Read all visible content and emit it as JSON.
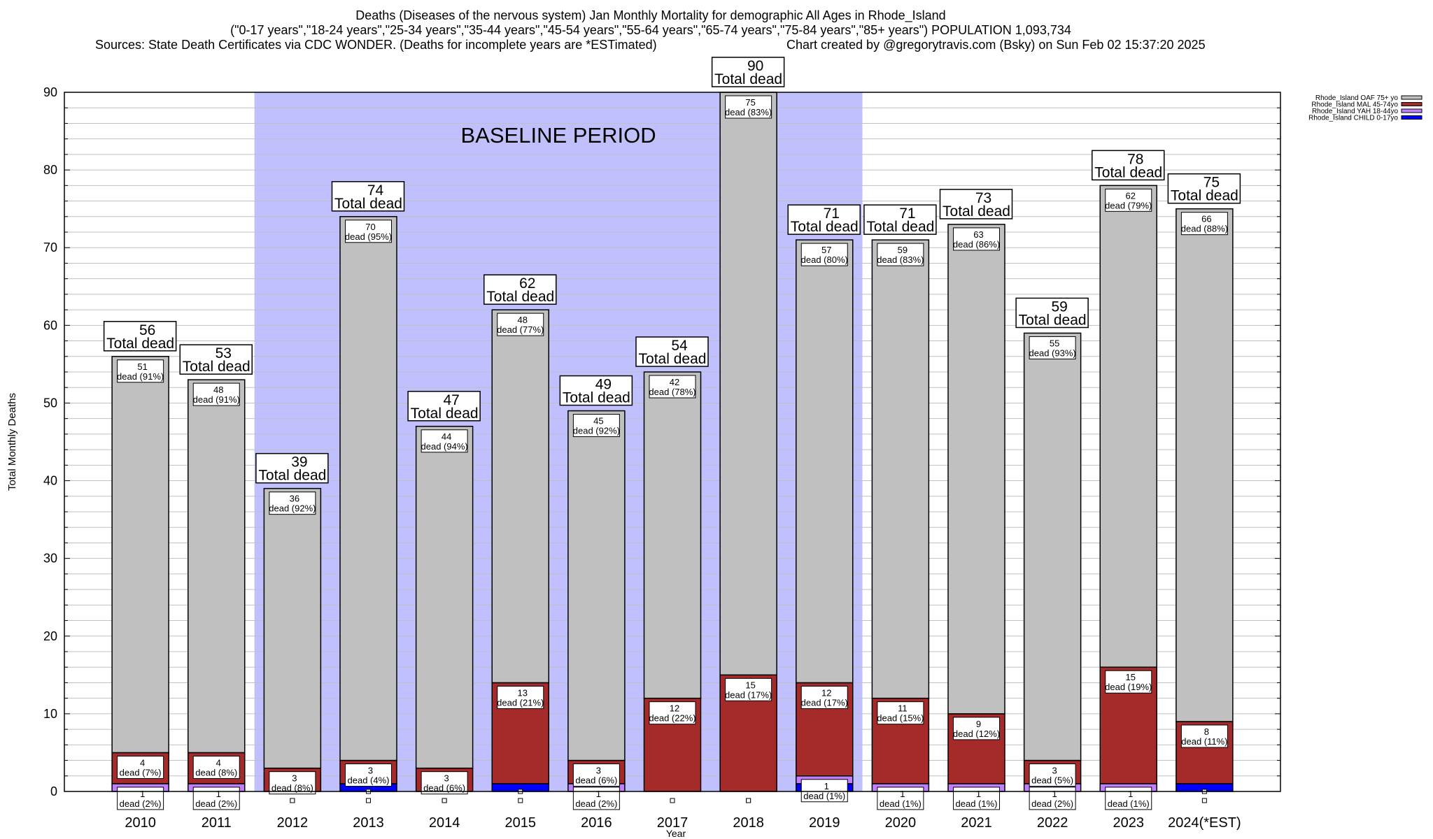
{
  "chart_data": {
    "type": "bar",
    "stacked": true,
    "title": "Deaths (Diseases of the nervous system) Jan Monthly Mortality for demographic All Ages in Rhode_Island",
    "subtitle": "(\"0-17 years\",\"18-24 years\",\"25-34 years\",\"35-44 years\",\"45-54 years\",\"55-64 years\",\"65-74 years\",\"75-84 years\",\"85+ years\") POPULATION 1,093,734",
    "sources": "Sources: State Death Certificates via CDC WONDER. (Deaths for incomplete years are *ESTimated)",
    "credit": "Chart created by @gregorytravis.com (Bsky) on Sun Feb 02 15:37:20 2025",
    "xlabel": "Year",
    "ylabel": "Total Monthly Deaths",
    "ylim": [
      0,
      90
    ],
    "yticks": [
      "0",
      "10",
      "20",
      "30",
      "40",
      "50",
      "60",
      "70",
      "80",
      "90"
    ],
    "grid": true,
    "legend_position": "top-right",
    "annotation": "BASELINE PERIOD",
    "baseline_range": [
      "2012",
      "2019"
    ],
    "total_label_suffix": "Total dead",
    "segment_label_word": "dead",
    "categories": [
      "2010",
      "2011",
      "2012",
      "2013",
      "2014",
      "2015",
      "2016",
      "2017",
      "2018",
      "2019",
      "2020",
      "2021",
      "2022",
      "2023",
      "2024(*EST)"
    ],
    "totals": [
      56,
      53,
      39,
      74,
      47,
      62,
      49,
      54,
      90,
      71,
      71,
      73,
      59,
      78,
      75
    ],
    "series": [
      {
        "name": "Rhode_Island CHILD 0-17yo",
        "color": "#0000ff",
        "values": [
          0,
          0,
          0,
          1,
          0,
          1,
          0,
          0,
          0,
          1,
          0,
          0,
          0,
          0,
          1
        ],
        "percents": [
          null,
          null,
          null,
          null,
          null,
          null,
          null,
          null,
          null,
          null,
          null,
          null,
          null,
          null,
          null
        ]
      },
      {
        "name": "Rhode_Island YAH 18-44yo",
        "color": "#c080ff",
        "values": [
          1,
          1,
          0,
          0,
          0,
          0,
          1,
          0,
          0,
          1,
          1,
          1,
          1,
          1,
          0
        ],
        "percents": [
          "2%",
          "2%",
          null,
          null,
          null,
          null,
          "2%",
          null,
          null,
          "1%",
          "1%",
          "1%",
          "2%",
          "1%",
          null
        ]
      },
      {
        "name": "Rhode_Island MAL 45-74yo",
        "color": "#a52a2a",
        "values": [
          4,
          4,
          3,
          3,
          3,
          13,
          3,
          12,
          15,
          12,
          11,
          9,
          3,
          15,
          8
        ],
        "percents": [
          "7%",
          "8%",
          "8%",
          "4%",
          "6%",
          "21%",
          "6%",
          "22%",
          "17%",
          "17%",
          "15%",
          "12%",
          "5%",
          "19%",
          "11%"
        ]
      },
      {
        "name": "Rhode_Island OAF 75+ yo",
        "color": "#c0c0c0",
        "values": [
          51,
          48,
          36,
          70,
          44,
          48,
          45,
          42,
          75,
          57,
          59,
          63,
          55,
          62,
          66
        ],
        "percents": [
          "91%",
          "91%",
          "92%",
          "95%",
          "94%",
          "77%",
          "92%",
          "78%",
          "83%",
          "80%",
          "83%",
          "86%",
          "93%",
          "79%",
          "88%"
        ]
      }
    ],
    "legend_order": [
      "Rhode_Island OAF 75+ yo",
      "Rhode_Island MAL 45-74yo",
      "Rhode_Island YAH 18-44yo",
      "Rhode_Island CHILD 0-17yo"
    ],
    "colors": {
      "baseline_shade": "#c0c0ff",
      "grid": "#c0c0c0"
    }
  }
}
